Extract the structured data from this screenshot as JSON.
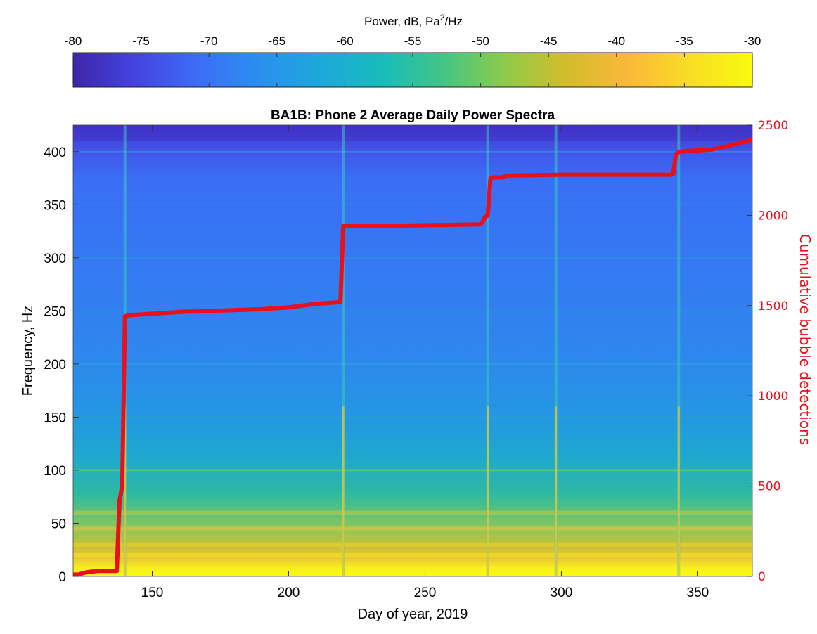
{
  "chart_data": {
    "type": "heatmap",
    "title": "BA1B: Phone 2 Average Daily Power Spectra",
    "xlabel": "Day of year, 2019",
    "ylabel": "Frequency, Hz",
    "y2label": "Cumulative bubble detections",
    "xlim": [
      121,
      370
    ],
    "ylim": [
      0,
      425
    ],
    "y2lim": [
      0,
      2500
    ],
    "xticks": [
      150,
      200,
      250,
      300,
      350
    ],
    "yticks": [
      0,
      50,
      100,
      150,
      200,
      250,
      300,
      350,
      400
    ],
    "y2ticks": [
      0,
      500,
      1000,
      1500,
      2000,
      2500
    ],
    "colorbar": {
      "label_main": "Power, dB, Pa",
      "label_sup": "2",
      "label_end": "/Hz",
      "range": [
        -80,
        -30
      ],
      "ticks": [
        -80,
        -75,
        -70,
        -65,
        -60,
        -55,
        -50,
        -45,
        -40,
        -35,
        -30
      ],
      "colormap": [
        "#3e26a8",
        "#4443e0",
        "#3d6cf7",
        "#2c8ef0",
        "#1da8db",
        "#16bcbb",
        "#44c585",
        "#8ecb4a",
        "#d4bc2b",
        "#fbb93a",
        "#f9dd25",
        "#f9fb0e"
      ]
    },
    "vertical_lines_days": [
      140,
      220,
      273,
      298,
      343
    ],
    "series": [
      {
        "type": "line",
        "axis": "y2",
        "color": "#e8101a",
        "x": [
          121,
          123,
          125,
          127,
          130,
          133,
          137,
          138,
          139,
          140,
          141,
          145,
          150,
          155,
          160,
          170,
          180,
          190,
          200,
          210,
          215,
          219,
          220,
          221,
          230,
          250,
          270,
          271,
          272,
          273,
          274,
          275,
          278,
          279,
          280,
          300,
          320,
          340,
          341,
          342,
          343,
          345,
          350,
          355,
          360,
          365,
          370
        ],
        "y": [
          10,
          10,
          20,
          25,
          30,
          30,
          30,
          420,
          500,
          1440,
          1445,
          1450,
          1455,
          1460,
          1465,
          1470,
          1475,
          1480,
          1490,
          1510,
          1515,
          1520,
          1940,
          1940,
          1940,
          1945,
          1950,
          1960,
          1990,
          2000,
          2205,
          2210,
          2210,
          2215,
          2220,
          2225,
          2225,
          2225,
          2230,
          2340,
          2350,
          2355,
          2360,
          2365,
          2380,
          2400,
          2420
        ]
      }
    ]
  }
}
